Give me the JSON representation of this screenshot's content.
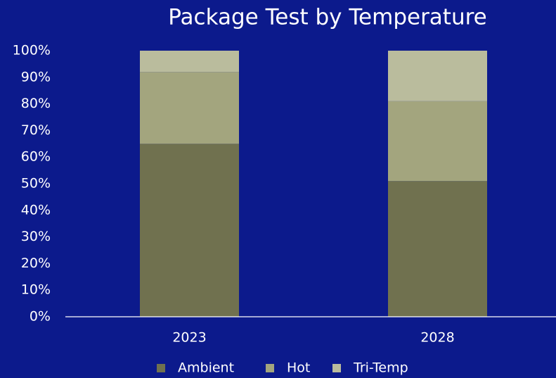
{
  "chart_data": {
    "type": "stacked_bar",
    "title": "Package Test by Temperature",
    "categories": [
      "2023",
      "2028"
    ],
    "series": [
      {
        "name": "Ambient",
        "color": "#70714f",
        "values": [
          65,
          51
        ]
      },
      {
        "name": "Hot",
        "color": "#a3a57e",
        "values": [
          27,
          30
        ]
      },
      {
        "name": "Tri-Temp",
        "color": "#babc9d",
        "values": [
          8,
          19
        ]
      }
    ],
    "ylim": [
      0,
      100
    ],
    "yticks": [
      {
        "value": 0,
        "label": "0%"
      },
      {
        "value": 10,
        "label": "10%"
      },
      {
        "value": 20,
        "label": "20%"
      },
      {
        "value": 30,
        "label": "30%"
      },
      {
        "value": 40,
        "label": "40%"
      },
      {
        "value": 50,
        "label": "50%"
      },
      {
        "value": 60,
        "label": "60%"
      },
      {
        "value": 70,
        "label": "70%"
      },
      {
        "value": 80,
        "label": "80%"
      },
      {
        "value": 90,
        "label": "90%"
      },
      {
        "value": 100,
        "label": "100%"
      }
    ],
    "grid": false,
    "legend": "bottom"
  }
}
